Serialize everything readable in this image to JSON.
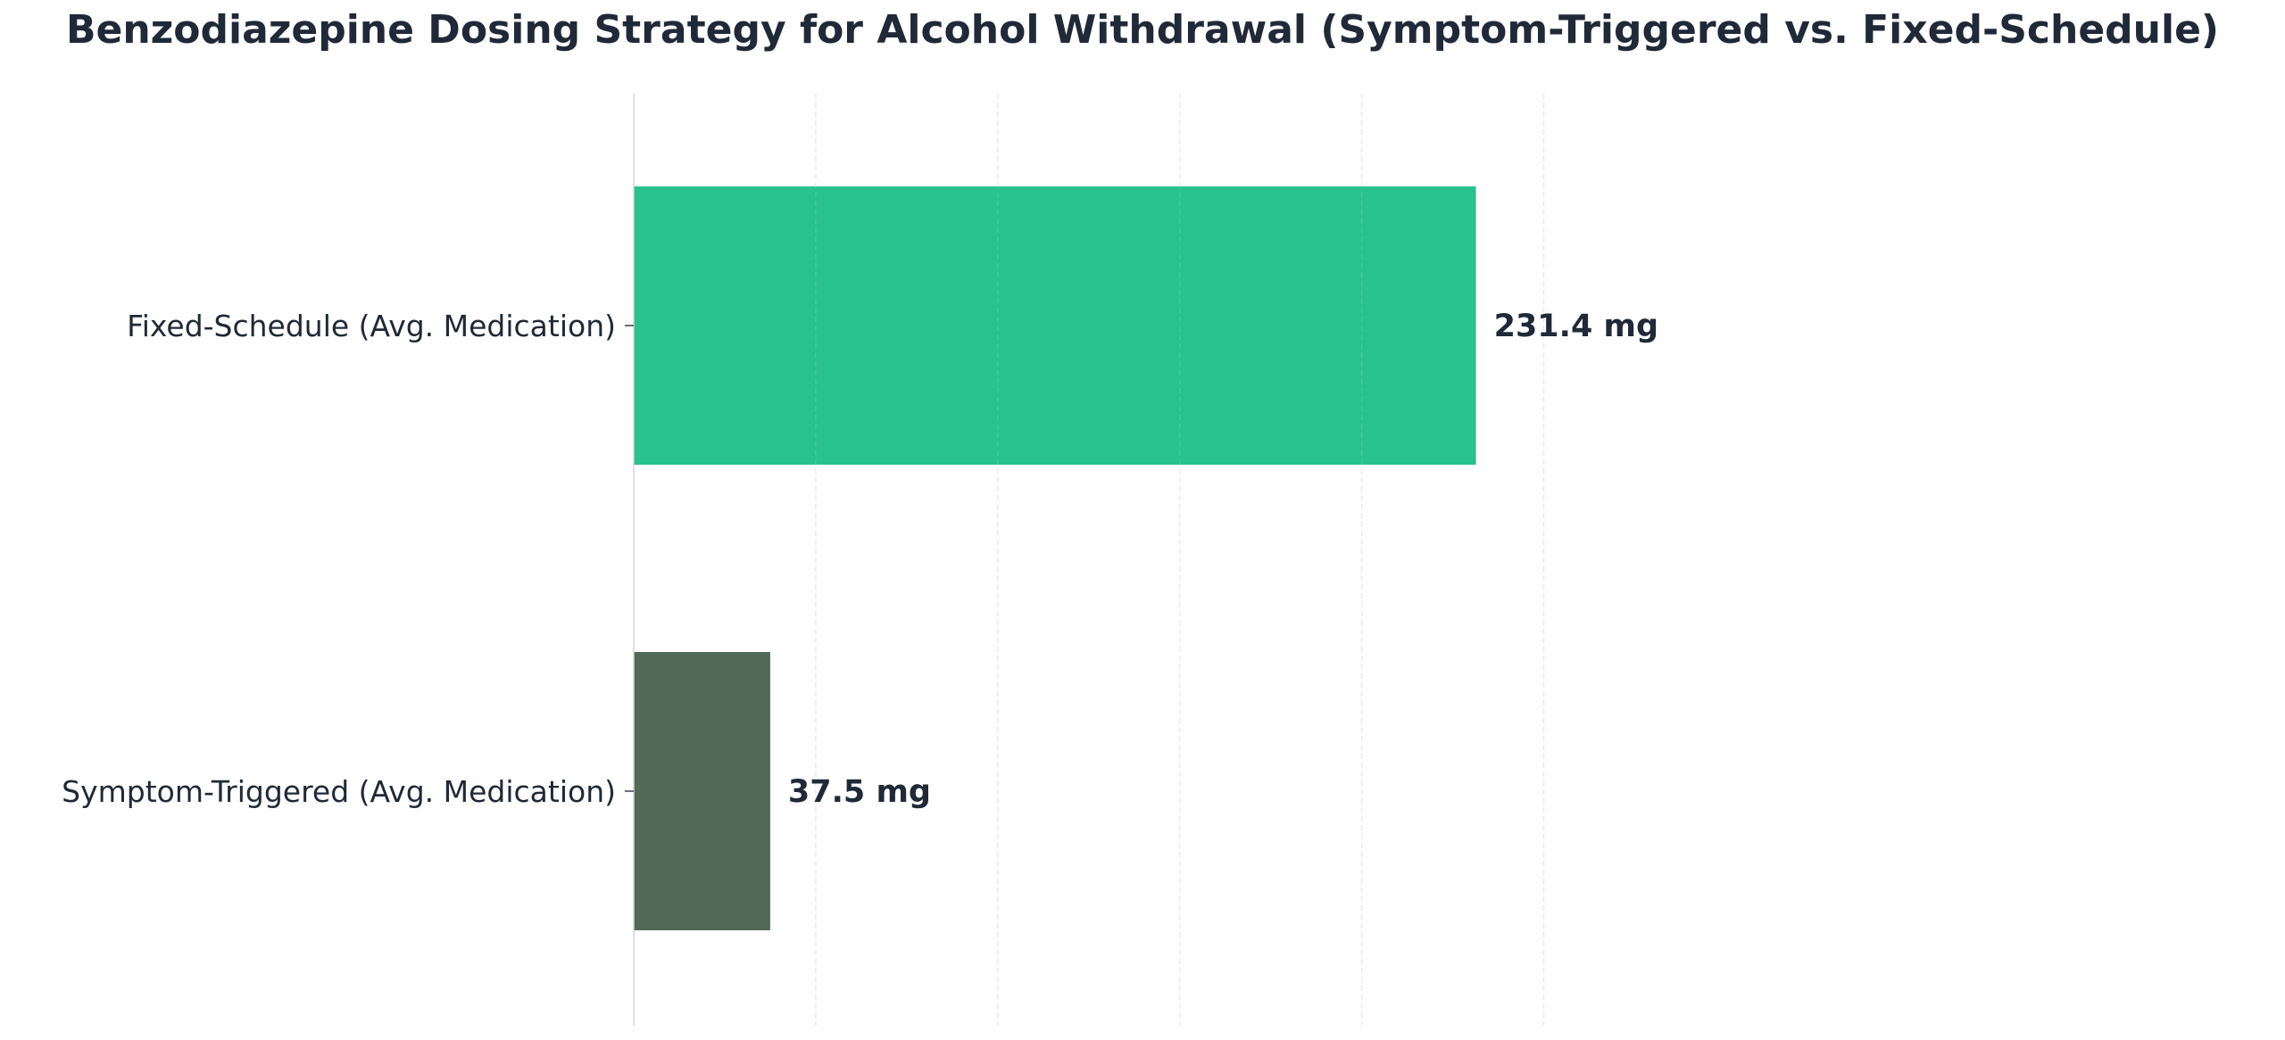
{
  "chart_data": {
    "type": "bar",
    "orientation": "horizontal",
    "title": "Benzodiazepine Dosing Strategy for Alcohol Withdrawal (Symptom-Triggered vs. Fixed-Schedule)",
    "xlabel": "",
    "ylabel": "",
    "categories": [
      "Fixed-Schedule (Avg. Medication)",
      "Symptom-Triggered (Avg. Medication)"
    ],
    "values": [
      231.4,
      37.5
    ],
    "value_labels": [
      "231.4 mg",
      "37.5 mg"
    ],
    "bar_colors": [
      "#28c28e",
      "#516956"
    ],
    "xlim": [
      0,
      450
    ],
    "x_gridlines": [
      50,
      100,
      150,
      200,
      250
    ],
    "grid": true,
    "legend": "none"
  },
  "colors": {
    "title": "#1f2937",
    "text": "#1f2937",
    "grid": "#e5e7eb",
    "axis": "#d1d5db"
  }
}
